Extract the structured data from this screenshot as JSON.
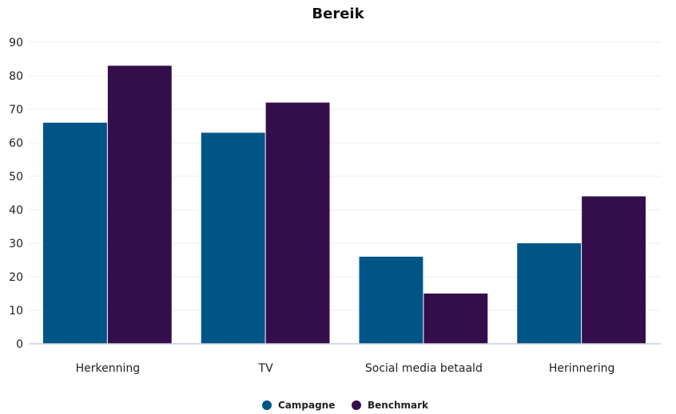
{
  "chart_data": {
    "type": "bar",
    "title": "Bereik",
    "xlabel": "",
    "ylabel": "",
    "categories": [
      "Herkenning",
      "TV",
      "Social media betaald",
      "Herinnering"
    ],
    "series": [
      {
        "name": "Campagne",
        "color": "#005587",
        "values": [
          66,
          63,
          26,
          30
        ]
      },
      {
        "name": "Benchmark",
        "color": "#340e4a",
        "values": [
          83,
          72,
          15,
          44
        ]
      }
    ],
    "ylim": [
      0,
      90
    ],
    "yticks": [
      0,
      10,
      20,
      30,
      40,
      50,
      60,
      70,
      80,
      90
    ],
    "grid": true,
    "legend_position": "bottom-center"
  }
}
